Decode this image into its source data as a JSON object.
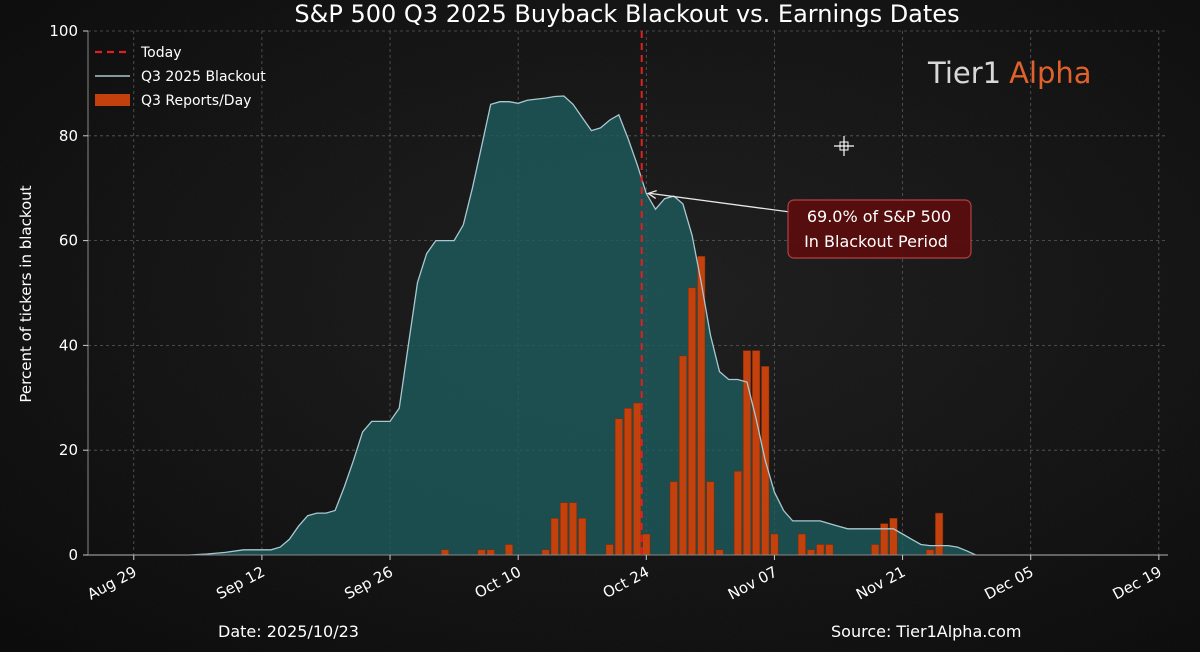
{
  "chart_data": {
    "type": "bar",
    "title": "S&P 500 Q3 2025 Buyback Blackout vs. Earnings Dates",
    "ylabel": "Percent of tickers in blackout",
    "xlabel": "",
    "ylim": [
      0,
      100
    ],
    "yticks": [
      0,
      20,
      40,
      60,
      80,
      100
    ],
    "xlim": [
      "2025-08-24",
      "2025-12-20"
    ],
    "xticks": [
      {
        "date": "2025-08-29",
        "label": "Aug 29"
      },
      {
        "date": "2025-09-12",
        "label": "Sep 12"
      },
      {
        "date": "2025-09-26",
        "label": "Sep 26"
      },
      {
        "date": "2025-10-10",
        "label": "Oct 10"
      },
      {
        "date": "2025-10-24",
        "label": "Oct 24"
      },
      {
        "date": "2025-11-07",
        "label": "Nov 07"
      },
      {
        "date": "2025-11-21",
        "label": "Nov 21"
      },
      {
        "date": "2025-12-05",
        "label": "Dec 05"
      },
      {
        "date": "2025-12-19",
        "label": "Dec 19"
      }
    ],
    "grid": true,
    "legend_position": "top-left",
    "legend": [
      {
        "label": "Today",
        "kind": "dashed-line",
        "color": "#e02020"
      },
      {
        "label": "Q3 2025 Blackout",
        "kind": "line",
        "color": "#a8c8d0"
      },
      {
        "label": "Q3 Reports/Day",
        "kind": "bar",
        "color": "#c2410c"
      }
    ],
    "today": "2025-10-23",
    "series": [
      {
        "name": "Q3 2025 Blackout",
        "type": "area",
        "color": "#a8c8d0",
        "fill": "#1e5c5f",
        "points": [
          [
            "2025-08-24",
            0
          ],
          [
            "2025-09-04",
            0
          ],
          [
            "2025-09-06",
            0.2
          ],
          [
            "2025-09-08",
            0.5
          ],
          [
            "2025-09-10",
            1
          ],
          [
            "2025-09-13",
            1
          ],
          [
            "2025-09-14",
            1.5
          ],
          [
            "2025-09-15",
            3
          ],
          [
            "2025-09-16",
            5.5
          ],
          [
            "2025-09-17",
            7.5
          ],
          [
            "2025-09-18",
            8
          ],
          [
            "2025-09-19",
            8
          ],
          [
            "2025-09-20",
            8.5
          ],
          [
            "2025-09-21",
            13
          ],
          [
            "2025-09-22",
            18
          ],
          [
            "2025-09-23",
            23.5
          ],
          [
            "2025-09-24",
            25.5
          ],
          [
            "2025-09-25",
            25.5
          ],
          [
            "2025-09-26",
            25.5
          ],
          [
            "2025-09-27",
            28
          ],
          [
            "2025-09-28",
            40
          ],
          [
            "2025-09-29",
            52
          ],
          [
            "2025-09-30",
            57.5
          ],
          [
            "2025-10-01",
            60
          ],
          [
            "2025-10-02",
            60
          ],
          [
            "2025-10-03",
            60
          ],
          [
            "2025-10-04",
            63
          ],
          [
            "2025-10-05",
            70
          ],
          [
            "2025-10-06",
            78
          ],
          [
            "2025-10-07",
            86
          ],
          [
            "2025-10-08",
            86.5
          ],
          [
            "2025-10-09",
            86.5
          ],
          [
            "2025-10-10",
            86.2
          ],
          [
            "2025-10-11",
            86.8
          ],
          [
            "2025-10-12",
            87
          ],
          [
            "2025-10-13",
            87.2
          ],
          [
            "2025-10-14",
            87.5
          ],
          [
            "2025-10-15",
            87.6
          ],
          [
            "2025-10-16",
            86
          ],
          [
            "2025-10-17",
            83.5
          ],
          [
            "2025-10-18",
            81
          ],
          [
            "2025-10-19",
            81.5
          ],
          [
            "2025-10-20",
            83
          ],
          [
            "2025-10-21",
            84
          ],
          [
            "2025-10-22",
            79.5
          ],
          [
            "2025-10-23",
            74.5
          ],
          [
            "2025-10-24",
            69
          ],
          [
            "2025-10-25",
            66
          ],
          [
            "2025-10-26",
            68
          ],
          [
            "2025-10-27",
            68.5
          ],
          [
            "2025-10-28",
            67
          ],
          [
            "2025-10-29",
            61
          ],
          [
            "2025-10-30",
            52
          ],
          [
            "2025-10-31",
            42
          ],
          [
            "2025-11-01",
            35
          ],
          [
            "2025-11-02",
            33.5
          ],
          [
            "2025-11-03",
            33.5
          ],
          [
            "2025-11-04",
            33
          ],
          [
            "2025-11-05",
            26
          ],
          [
            "2025-11-06",
            18
          ],
          [
            "2025-11-07",
            12
          ],
          [
            "2025-11-08",
            8.5
          ],
          [
            "2025-11-09",
            6.5
          ],
          [
            "2025-11-10",
            6.5
          ],
          [
            "2025-11-11",
            6.5
          ],
          [
            "2025-11-12",
            6.5
          ],
          [
            "2025-11-13",
            6
          ],
          [
            "2025-11-14",
            5.5
          ],
          [
            "2025-11-15",
            5
          ],
          [
            "2025-11-16",
            5
          ],
          [
            "2025-11-17",
            5
          ],
          [
            "2025-11-18",
            5
          ],
          [
            "2025-11-19",
            5
          ],
          [
            "2025-11-20",
            5
          ],
          [
            "2025-11-21",
            4
          ],
          [
            "2025-11-22",
            3
          ],
          [
            "2025-11-23",
            2
          ],
          [
            "2025-11-24",
            1.8
          ],
          [
            "2025-11-25",
            1.8
          ],
          [
            "2025-11-26",
            1.8
          ],
          [
            "2025-11-27",
            1.5
          ],
          [
            "2025-11-28",
            0.8
          ],
          [
            "2025-11-29",
            0
          ],
          [
            "2025-12-20",
            0
          ]
        ]
      },
      {
        "name": "Q3 Reports/Day",
        "type": "bar",
        "color": "#c2410c",
        "points": [
          [
            "2025-10-02",
            1
          ],
          [
            "2025-10-06",
            1
          ],
          [
            "2025-10-07",
            1
          ],
          [
            "2025-10-09",
            2
          ],
          [
            "2025-10-13",
            1
          ],
          [
            "2025-10-14",
            7
          ],
          [
            "2025-10-15",
            10
          ],
          [
            "2025-10-16",
            10
          ],
          [
            "2025-10-17",
            7
          ],
          [
            "2025-10-20",
            2
          ],
          [
            "2025-10-21",
            26
          ],
          [
            "2025-10-22",
            28
          ],
          [
            "2025-10-23",
            29
          ],
          [
            "2025-10-24",
            4
          ],
          [
            "2025-10-27",
            14
          ],
          [
            "2025-10-28",
            38
          ],
          [
            "2025-10-29",
            51
          ],
          [
            "2025-10-30",
            57
          ],
          [
            "2025-10-31",
            14
          ],
          [
            "2025-11-01",
            1
          ],
          [
            "2025-11-03",
            16
          ],
          [
            "2025-11-04",
            39
          ],
          [
            "2025-11-05",
            39
          ],
          [
            "2025-11-06",
            36
          ],
          [
            "2025-11-07",
            4
          ],
          [
            "2025-11-10",
            4
          ],
          [
            "2025-11-11",
            1
          ],
          [
            "2025-11-12",
            2
          ],
          [
            "2025-11-13",
            2
          ],
          [
            "2025-11-18",
            2
          ],
          [
            "2025-11-19",
            6
          ],
          [
            "2025-11-20",
            7
          ],
          [
            "2025-11-24",
            1
          ],
          [
            "2025-11-25",
            8
          ]
        ]
      }
    ],
    "annotation": {
      "text_line1": "69.0% of S&P 500",
      "text_line2": "In Blackout Period",
      "target_date": "2025-10-24",
      "target_value": 69.0,
      "box_color": "#5a0d0d",
      "box_border": "#b84545"
    }
  },
  "branding": {
    "logo_part1": "Tier1",
    "logo_part2": "Alpha",
    "logo_color1": "#d8d8d8",
    "logo_color2": "#e0612a"
  },
  "footer": {
    "date_label": "Date: 2025/10/23",
    "source_label": "Source: Tier1Alpha.com"
  }
}
